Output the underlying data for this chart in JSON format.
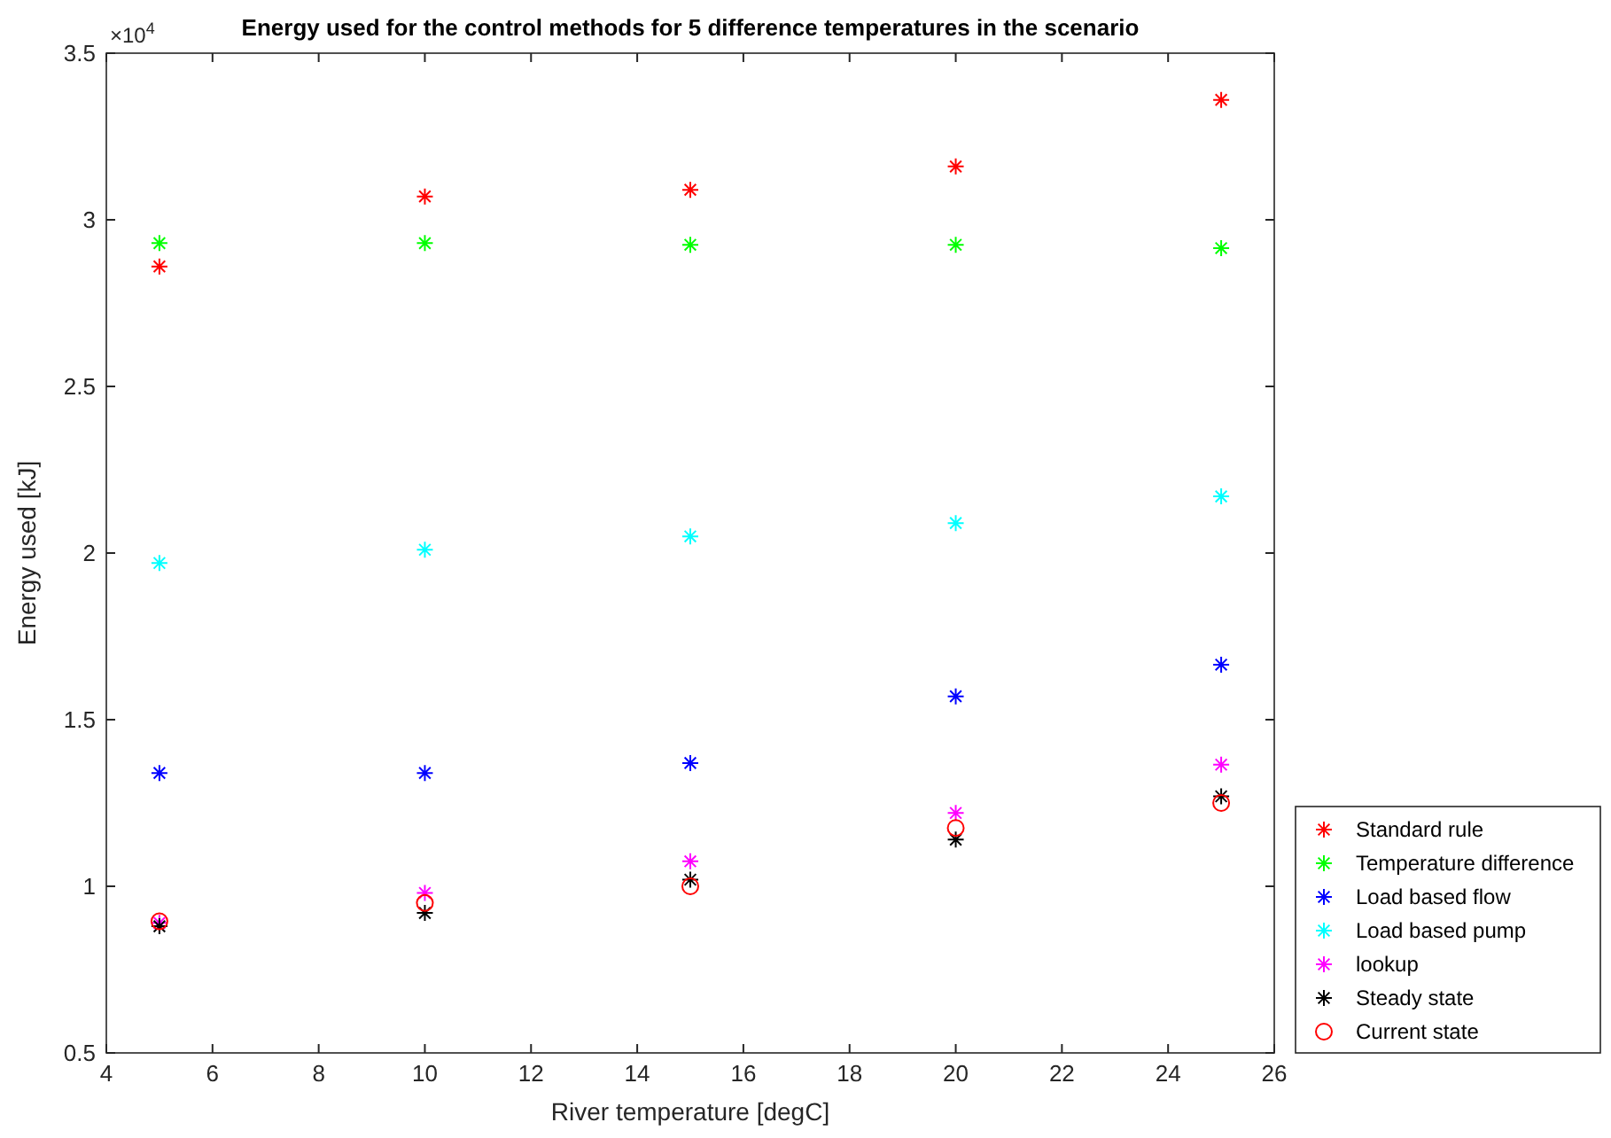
{
  "chart_data": {
    "type": "scatter",
    "title": "Energy used for the control methods for 5 difference temperatures in the scenario",
    "xlabel": "River temperature [degC]",
    "ylabel": "Energy used [kJ]",
    "annotations": [
      "×10$^{4}$"
    ],
    "x": [
      5,
      10,
      15,
      20,
      25
    ],
    "series": [
      {
        "name": "Standard rule",
        "color": "#ff0000",
        "marker": "cross",
        "values": [
          2.86,
          3.07,
          3.09,
          3.16,
          3.36
        ]
      },
      {
        "name": "Temperature difference",
        "color": "#00ff00",
        "marker": "cross",
        "values": [
          2.93,
          2.93,
          2.925,
          2.925,
          2.915
        ]
      },
      {
        "name": "Load based flow",
        "color": "#0000ff",
        "marker": "cross",
        "values": [
          1.34,
          1.34,
          1.37,
          1.57,
          1.665
        ]
      },
      {
        "name": "Load based pump",
        "color": "#00ffff",
        "marker": "cross",
        "values": [
          1.97,
          2.01,
          2.05,
          2.09,
          2.17
        ]
      },
      {
        "name": "lookup",
        "color": "#ff00ff",
        "marker": "cross",
        "values": [
          0.89,
          0.98,
          1.075,
          1.22,
          1.365
        ]
      },
      {
        "name": "Steady state",
        "color": "#000000",
        "marker": "cross",
        "values": [
          0.88,
          0.92,
          1.02,
          1.14,
          1.27
        ]
      },
      {
        "name": "Current state",
        "color": "#ff0000",
        "marker": "circle",
        "values": [
          0.895,
          0.95,
          1.0,
          1.175,
          1.25
        ]
      }
    ],
    "xlim": [
      4,
      26
    ],
    "xticks": [
      4,
      6,
      8,
      10,
      12,
      14,
      16,
      18,
      20,
      22,
      24,
      26
    ],
    "ylim": [
      0.5,
      3.5
    ],
    "yticks": [
      0.5,
      1,
      1.5,
      2,
      2.5,
      3,
      3.5
    ],
    "grid": false,
    "legend": "right"
  }
}
